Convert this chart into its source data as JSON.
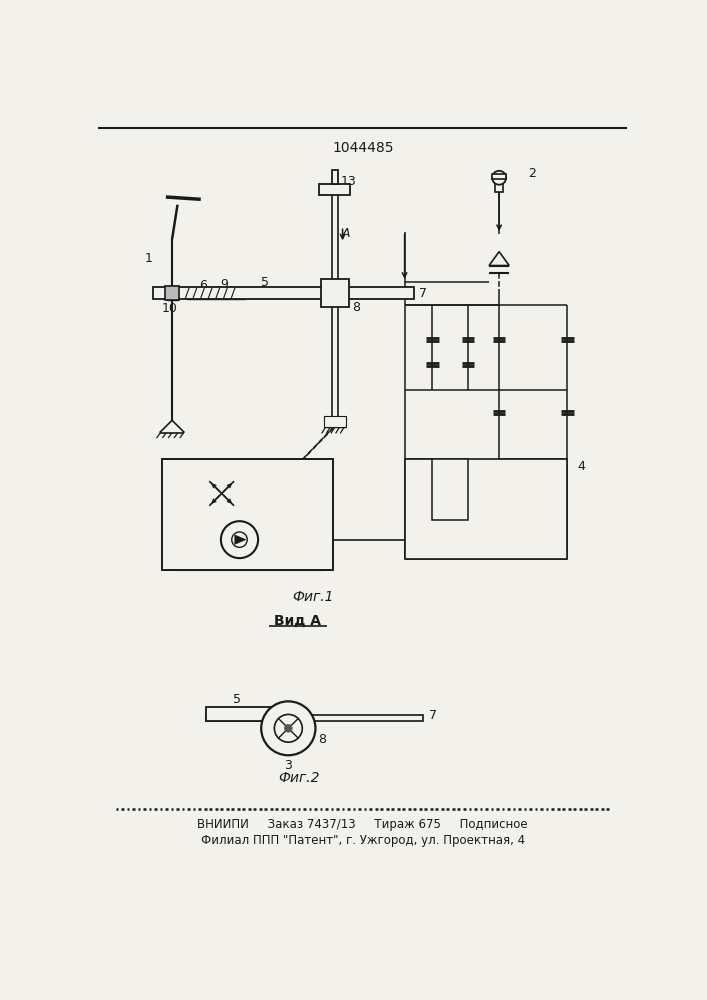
{
  "title": "1044485",
  "fig1_label": "Фиг.1",
  "fig2_label": "Фиг.2",
  "vid_label": "Вид А",
  "footer_line1": "ВНИИПИ     Заказ 7437/13     Тираж 675     Подписное",
  "footer_line2": "Филиал ППП \"Патент\", г. Ужгород, ул. Проектная, 4",
  "bg_color": "#f2f1ec",
  "line_color": "#1a1a1a"
}
